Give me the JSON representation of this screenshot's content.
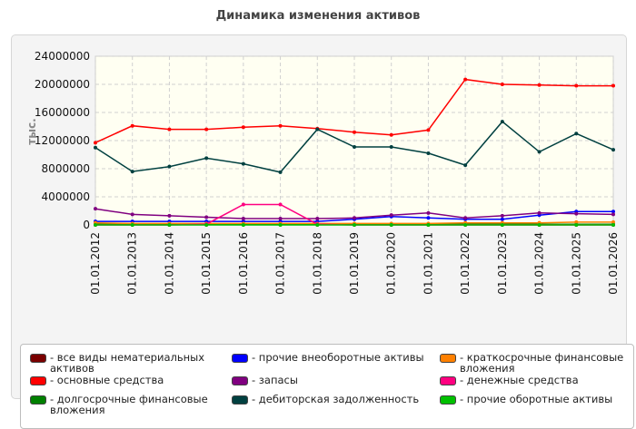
{
  "chart_data": {
    "type": "line",
    "title": "Динамика изменения активов",
    "ylabel": "тыс.",
    "xlabel": "",
    "ylim": [
      0,
      24000000
    ],
    "yticks": [
      "24000000",
      "20000000",
      "16000000",
      "12000000",
      "8000000",
      "4000000",
      "0"
    ],
    "grid": true,
    "legend_position": "bottom",
    "categories": [
      "01.01.2012",
      "01.01.2013",
      "01.01.2014",
      "01.01.2015",
      "01.01.2016",
      "01.01.2017",
      "01.01.2018",
      "01.01.2019",
      "01.01.2020",
      "01.01.2021",
      "01.01.2022",
      "01.01.2023",
      "01.01.2024",
      "01.01.2025",
      "01.01.2026"
    ],
    "series": [
      {
        "name": "все виды нематериальных активов",
        "color": "#7a0000",
        "values": [
          20000,
          20000,
          20000,
          20000,
          20000,
          20000,
          20000,
          20000,
          20000,
          20000,
          20000,
          20000,
          20000,
          20000,
          20000
        ]
      },
      {
        "name": "основные средства",
        "color": "#ff0000",
        "values": [
          11700000,
          14100000,
          13600000,
          13600000,
          13900000,
          14100000,
          13700000,
          13200000,
          12800000,
          13500000,
          20700000,
          20000000,
          19900000,
          19800000,
          19800000
        ]
      },
      {
        "name": "долгосрочные финансовые вложения",
        "color": "#008000",
        "values": [
          100000,
          100000,
          100000,
          100000,
          100000,
          100000,
          100000,
          100000,
          100000,
          100000,
          100000,
          100000,
          100000,
          100000,
          100000
        ]
      },
      {
        "name": "прочие внеоборотные активы",
        "color": "#0000ff",
        "values": [
          500000,
          500000,
          500000,
          500000,
          500000,
          500000,
          500000,
          800000,
          1200000,
          1000000,
          800000,
          800000,
          1400000,
          1900000,
          1900000
        ]
      },
      {
        "name": "запасы",
        "color": "#800080",
        "values": [
          2300000,
          1500000,
          1300000,
          1100000,
          900000,
          900000,
          900000,
          1000000,
          1400000,
          1700000,
          1000000,
          1300000,
          1700000,
          1600000,
          1500000
        ]
      },
      {
        "name": "дебиторская задолженность",
        "color": "#004040",
        "values": [
          11000000,
          7600000,
          8300000,
          9500000,
          8700000,
          7500000,
          13600000,
          11100000,
          11100000,
          10200000,
          8500000,
          14700000,
          10400000,
          13000000,
          10700000
        ]
      },
      {
        "name": "краткосрочные финансовые вложения",
        "color": "#ff8000",
        "values": [
          300000,
          200000,
          200000,
          200000,
          200000,
          200000,
          200000,
          200000,
          200000,
          200000,
          300000,
          300000,
          300000,
          400000,
          400000
        ]
      },
      {
        "name": "денежные средства",
        "color": "#ff0080",
        "values": [
          0,
          0,
          0,
          100000,
          2900000,
          2900000,
          100000,
          0,
          0,
          0,
          0,
          0,
          0,
          0,
          0
        ]
      },
      {
        "name": "прочие оборотные активы",
        "color": "#00c000",
        "values": [
          0,
          0,
          0,
          0,
          0,
          0,
          0,
          0,
          0,
          0,
          0,
          0,
          0,
          0,
          0
        ]
      }
    ]
  }
}
